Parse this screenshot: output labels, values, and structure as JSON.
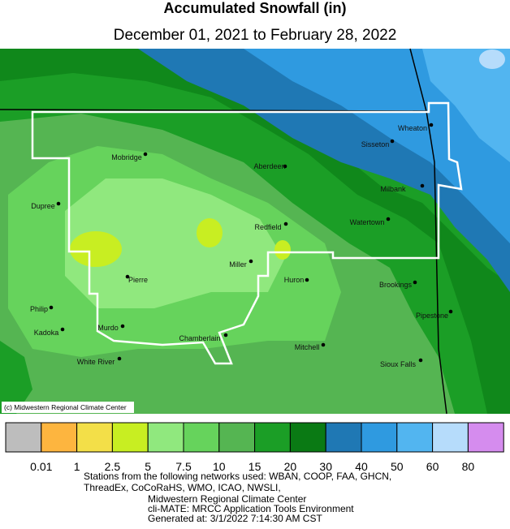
{
  "header": {
    "title": "Accumulated Snowfall (in)",
    "subtitle": "December 01, 2021 to February 28, 2022"
  },
  "map": {
    "cities": [
      "Mobridge",
      "Aberdeen",
      "Sisseton",
      "Wheaton",
      "Milbank",
      "Dupree",
      "Redfield",
      "Watertown",
      "Miller",
      "Pierre",
      "Huron",
      "Brookings",
      "Philip",
      "Pipestone",
      "Kadoka",
      "Murdo",
      "Chamberlain",
      "Mitchell",
      "White River",
      "Sioux Falls"
    ],
    "credit": "(c) Midwestern Regional Climate Center"
  },
  "legend": {
    "colors": [
      "#bdbdbd",
      "#fdb53f",
      "#f3df48",
      "#c8ee22",
      "#90e87e",
      "#66d35c",
      "#55b552",
      "#1b9e26",
      "#0a7a14",
      "#1f78b4",
      "#2f9ae0",
      "#52b5f0",
      "#b6dcfb",
      "#d58cee"
    ],
    "ticks": [
      0.01,
      1,
      2.5,
      5,
      7.5,
      10,
      15,
      20,
      30,
      40,
      50,
      60,
      80
    ]
  },
  "footer": {
    "lines": [
      "Stations from the following networks used: WBAN, COOP, FAA, GHCN,",
      "ThreadEx, CoCoRaHS, WMO, ICAO, NWSLI,",
      "Midwestern Regional Climate Center",
      "cli-MATE: MRCC Application Tools Environment",
      "Generated at: 3/1/2022 7:14:30 AM CST"
    ]
  }
}
